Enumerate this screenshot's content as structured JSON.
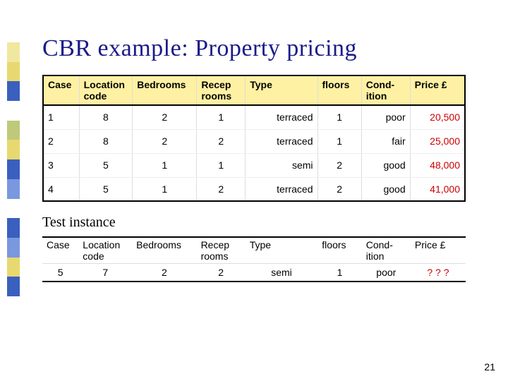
{
  "title": "CBR example: Property pricing",
  "page_number": "21",
  "sidebar_colors": [
    "#f0e8a0",
    "#e8d870",
    "#3a5fbf",
    "#ffffff",
    "#bfc97a",
    "#e8d870",
    "#3a5fbf",
    "#7a98e0",
    "#ffffff",
    "#3a5fbf",
    "#7a98e0",
    "#e8d870",
    "#3a5fbf"
  ],
  "main_table": {
    "headers": [
      "Case",
      "Location code",
      "Bedrooms",
      "Recep rooms",
      "Type",
      "floors",
      "Cond-ition",
      "Price £"
    ],
    "rows": [
      {
        "case": "1",
        "loc": "8",
        "bed": "2",
        "recep": "1",
        "type": "terraced",
        "floors": "1",
        "cond": "poor",
        "price": "20,500"
      },
      {
        "case": "2",
        "loc": "8",
        "bed": "2",
        "recep": "2",
        "type": "terraced",
        "floors": "1",
        "cond": "fair",
        "price": "25,000"
      },
      {
        "case": "3",
        "loc": "5",
        "bed": "1",
        "recep": "1",
        "type": "semi",
        "floors": "2",
        "cond": "good",
        "price": "48,000"
      },
      {
        "case": "4",
        "loc": "5",
        "bed": "1",
        "recep": "2",
        "type": "terraced",
        "floors": "2",
        "cond": "good",
        "price": "41,000"
      }
    ]
  },
  "test_label": "Test instance",
  "test_table": {
    "headers": [
      "Case",
      "Location code",
      "Bedrooms",
      "Recep rooms",
      "Type",
      "floors",
      "Cond-ition",
      "Price £"
    ],
    "row": {
      "case": "5",
      "loc": "7",
      "bed": "2",
      "recep": "2",
      "type": "semi",
      "floors": "1",
      "cond": "poor",
      "price": "? ? ?"
    }
  },
  "header_bg": "#fff1a3",
  "price_color": "#cc0000",
  "title_color": "#1a1a8a"
}
